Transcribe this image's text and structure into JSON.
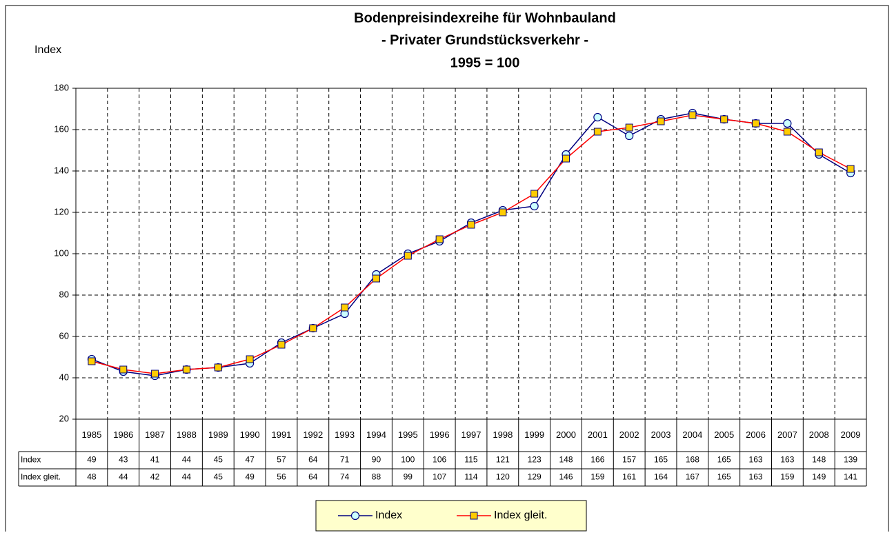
{
  "chart_data": {
    "type": "line",
    "title_lines": [
      "Bodenpreisindexreihe für Wohnbauland",
      "- Privater Grundstücksverkehr -",
      "1995 = 100"
    ],
    "y_label": "Index",
    "categories": [
      "1985",
      "1986",
      "1987",
      "1988",
      "1989",
      "1990",
      "1991",
      "1992",
      "1993",
      "1994",
      "1995",
      "1996",
      "1997",
      "1998",
      "1999",
      "2000",
      "2001",
      "2002",
      "2003",
      "2004",
      "2005",
      "2006",
      "2007",
      "2008",
      "2009"
    ],
    "series": [
      {
        "name": "Index",
        "color": "#000080",
        "marker": "circle",
        "marker_color": "#ccffff",
        "values": [
          49,
          43,
          41,
          44,
          45,
          47,
          57,
          64,
          71,
          90,
          100,
          106,
          115,
          121,
          123,
          148,
          166,
          157,
          165,
          168,
          165,
          163,
          163,
          148,
          139
        ]
      },
      {
        "name": "Index gleit.",
        "color": "#ff0000",
        "marker": "square",
        "marker_color": "#ffcc00",
        "values": [
          48,
          44,
          42,
          44,
          45,
          49,
          56,
          64,
          74,
          88,
          99,
          107,
          114,
          120,
          129,
          146,
          159,
          161,
          164,
          167,
          165,
          163,
          159,
          149,
          141
        ]
      }
    ],
    "ylim": [
      20,
      180
    ],
    "yticks": [
      20,
      40,
      60,
      80,
      100,
      120,
      140,
      160,
      180
    ],
    "grid": true,
    "data_table": true,
    "legend": "bottom"
  }
}
